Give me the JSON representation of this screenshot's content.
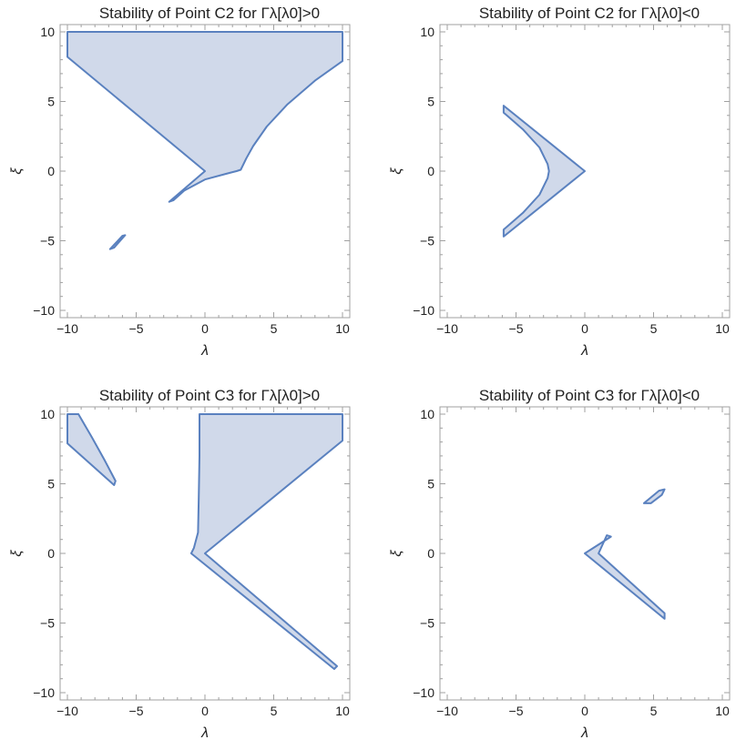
{
  "chart_data": [
    {
      "type": "region",
      "title": "Stability of Point C2 for Γλ[λ0]>0",
      "xlabel": "λ",
      "ylabel": "ξ",
      "xlim": [
        -10,
        10
      ],
      "ylim": [
        -10,
        10
      ],
      "xticks": [
        -10,
        -5,
        0,
        5,
        10
      ],
      "yticks": [
        -10,
        -5,
        0,
        5,
        10
      ],
      "grid": false,
      "regions": [
        {
          "points": [
            [
              -10,
              10
            ],
            [
              10,
              10
            ],
            [
              10,
              7.9
            ],
            [
              8,
              6.5
            ],
            [
              6,
              4.8
            ],
            [
              4.5,
              3.2
            ],
            [
              3.5,
              1.8
            ],
            [
              3,
              0.9
            ],
            [
              2.6,
              0.1
            ],
            [
              2.3,
              0
            ],
            [
              1.5,
              -0.2
            ],
            [
              0,
              -0.6
            ],
            [
              -1.5,
              -1.4
            ],
            [
              -2.3,
              -2.1
            ],
            [
              -2.6,
              -2.2
            ],
            [
              0,
              0
            ],
            [
              -10,
              8.2
            ]
          ]
        },
        {
          "points": [
            [
              -6.6,
              -5.5
            ],
            [
              -5.8,
              -4.6
            ],
            [
              -6.0,
              -4.65
            ],
            [
              -6.9,
              -5.6
            ]
          ]
        }
      ]
    },
    {
      "type": "region",
      "title": "Stability of Point C2 for Γλ[λ0]<0",
      "xlabel": "λ",
      "ylabel": "ξ",
      "xlim": [
        -10,
        10
      ],
      "ylim": [
        -10,
        10
      ],
      "xticks": [
        -10,
        -5,
        0,
        5,
        10
      ],
      "yticks": [
        -10,
        -5,
        0,
        5,
        10
      ],
      "grid": false,
      "regions": [
        {
          "points": [
            [
              0,
              0
            ],
            [
              -5.9,
              4.7
            ],
            [
              -5.9,
              4.2
            ],
            [
              -4.5,
              3.0
            ],
            [
              -3.3,
              1.7
            ],
            [
              -2.7,
              0.5
            ],
            [
              -2.6,
              0
            ],
            [
              -2.7,
              -0.5
            ],
            [
              -3.3,
              -1.7
            ],
            [
              -4.5,
              -3.0
            ],
            [
              -5.9,
              -4.2
            ],
            [
              -5.9,
              -4.7
            ]
          ]
        }
      ]
    },
    {
      "type": "region",
      "title": "Stability of Point C3 for Γλ[λ0]>0",
      "xlabel": "λ",
      "ylabel": "ξ",
      "xlim": [
        -10,
        10
      ],
      "ylim": [
        -10,
        10
      ],
      "xticks": [
        -10,
        -5,
        0,
        5,
        10
      ],
      "yticks": [
        -10,
        -5,
        0,
        5,
        10
      ],
      "grid": false,
      "regions": [
        {
          "points": [
            [
              -10,
              10
            ],
            [
              -9.2,
              10
            ],
            [
              -8.2,
              8.3
            ],
            [
              -7.3,
              6.7
            ],
            [
              -6.5,
              5.2
            ],
            [
              -6.6,
              4.9
            ],
            [
              -10,
              7.9
            ]
          ]
        },
        {
          "points": [
            [
              -0.4,
              10
            ],
            [
              10,
              10
            ],
            [
              10,
              8.1
            ],
            [
              0,
              0
            ],
            [
              9.6,
              -8.1
            ],
            [
              9.4,
              -8.3
            ],
            [
              -1.0,
              0
            ],
            [
              -0.8,
              0.4
            ],
            [
              -0.5,
              1.5
            ],
            [
              -0.45,
              4
            ],
            [
              -0.4,
              7
            ]
          ]
        }
      ]
    },
    {
      "type": "region",
      "title": "Stability of Point C3 for Γλ[λ0]<0",
      "xlabel": "λ",
      "ylabel": "ξ",
      "xlim": [
        -10,
        10
      ],
      "ylim": [
        -10,
        10
      ],
      "xticks": [
        -10,
        -5,
        0,
        5,
        10
      ],
      "yticks": [
        -10,
        -5,
        0,
        5,
        10
      ],
      "grid": false,
      "regions": [
        {
          "points": [
            [
              0,
              0
            ],
            [
              1.9,
              1.2
            ],
            [
              1.6,
              1.3
            ],
            [
              1.0,
              0
            ],
            [
              5.8,
              -4.3
            ],
            [
              5.8,
              -4.7
            ]
          ]
        },
        {
          "points": [
            [
              4.3,
              3.6
            ],
            [
              5.4,
              4.5
            ],
            [
              5.8,
              4.6
            ],
            [
              5.6,
              4.2
            ],
            [
              4.8,
              3.6
            ]
          ]
        }
      ]
    }
  ],
  "colors": {
    "fill": "#d0d9ea",
    "stroke": "#5a81bf",
    "frame": "#a0a0a0"
  }
}
